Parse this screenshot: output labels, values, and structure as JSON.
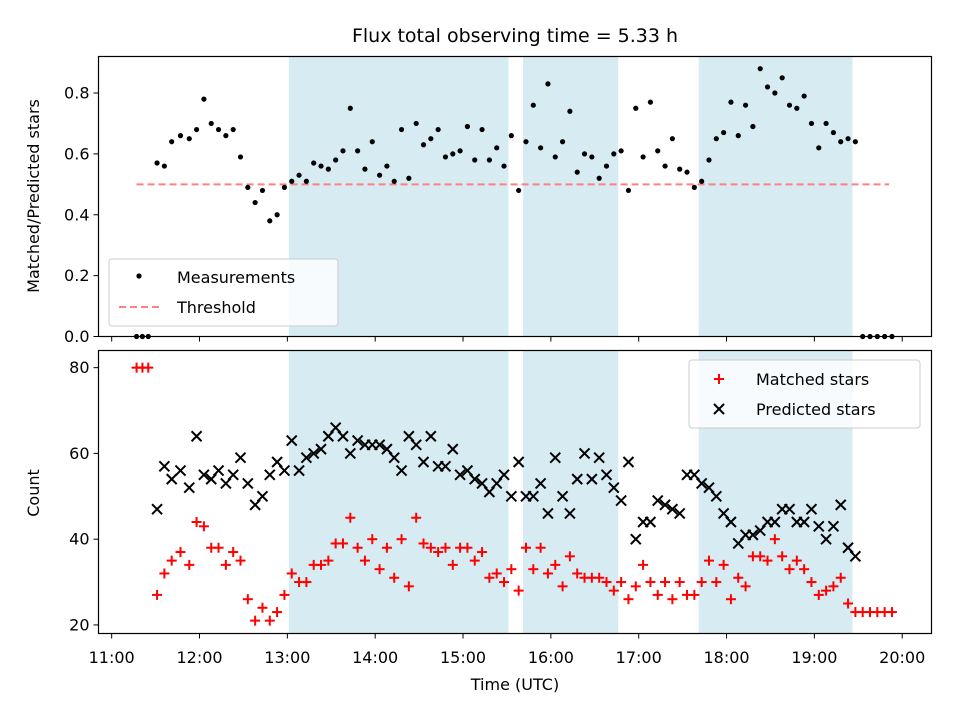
{
  "chart_data": [
    {
      "type": "scatter",
      "title": "Flux total observing time = 5.33 h",
      "xlabel": "Time (UTC)",
      "ylabel": "Matched/Predicted stars",
      "ylim": [
        0,
        0.92
      ],
      "yticks": [
        "0.0",
        "0.2",
        "0.4",
        "0.6",
        "0.8"
      ],
      "grid": false,
      "legend_position": "lower-left",
      "shaded_intervals": [
        [
          "13:01",
          "15:31"
        ],
        [
          "15:41",
          "16:46"
        ],
        [
          "17:41",
          "19:26"
        ]
      ],
      "threshold": 0.5,
      "threshold_range": [
        "11:17",
        "19:51"
      ],
      "series": [
        {
          "name": "Measurements",
          "marker": "dot",
          "color": "#000000",
          "x": [
            "11:17",
            "11:21",
            "11:25",
            "11:31",
            "11:36",
            "11:41",
            "11:47",
            "11:53",
            "11:58",
            "12:03",
            "12:08",
            "12:13",
            "12:18",
            "12:23",
            "12:28",
            "12:33",
            "12:38",
            "12:43",
            "12:48",
            "12:53",
            "12:58",
            "13:03",
            "13:08",
            "13:13",
            "13:18",
            "13:23",
            "13:28",
            "13:33",
            "13:38",
            "13:43",
            "13:48",
            "13:53",
            "13:58",
            "14:03",
            "14:08",
            "14:13",
            "14:18",
            "14:23",
            "14:28",
            "14:33",
            "14:38",
            "14:43",
            "14:48",
            "14:53",
            "14:58",
            "15:03",
            "15:08",
            "15:13",
            "15:18",
            "15:23",
            "15:28",
            "15:33",
            "15:38",
            "15:43",
            "15:48",
            "15:53",
            "15:58",
            "16:03",
            "16:08",
            "16:13",
            "16:18",
            "16:23",
            "16:28",
            "16:33",
            "16:38",
            "16:43",
            "16:48",
            "16:53",
            "16:58",
            "17:03",
            "17:08",
            "17:13",
            "17:18",
            "17:23",
            "17:28",
            "17:33",
            "17:38",
            "17:43",
            "17:48",
            "17:53",
            "17:58",
            "18:03",
            "18:08",
            "18:13",
            "18:18",
            "18:23",
            "18:28",
            "18:33",
            "18:38",
            "18:43",
            "18:48",
            "18:53",
            "18:58",
            "19:03",
            "19:08",
            "19:13",
            "19:18",
            "19:23",
            "19:28",
            "19:33",
            "19:38",
            "19:43",
            "19:48",
            "19:53"
          ],
          "y": [
            0,
            0,
            0,
            0.57,
            0.56,
            0.64,
            0.66,
            0.65,
            0.68,
            0.78,
            0.7,
            0.68,
            0.66,
            0.68,
            0.59,
            0.49,
            0.44,
            0.48,
            0.38,
            0.4,
            0.49,
            0.51,
            0.53,
            0.51,
            0.57,
            0.56,
            0.55,
            0.58,
            0.61,
            0.75,
            0.61,
            0.55,
            0.64,
            0.53,
            0.56,
            0.51,
            0.68,
            0.52,
            0.7,
            0.63,
            0.65,
            0.68,
            0.59,
            0.6,
            0.61,
            0.69,
            0.58,
            0.68,
            0.58,
            0.62,
            0.56,
            0.66,
            0.48,
            0.64,
            0.76,
            0.62,
            0.83,
            0.59,
            0.64,
            0.74,
            0.54,
            0.6,
            0.59,
            0.52,
            0.56,
            0.6,
            0.61,
            0.48,
            0.75,
            0.59,
            0.77,
            0.61,
            0.56,
            0.65,
            0.55,
            0.54,
            0.49,
            0.51,
            0.58,
            0.65,
            0.67,
            0.77,
            0.66,
            0.76,
            0.69,
            0.88,
            0.82,
            0.8,
            0.85,
            0.76,
            0.75,
            0.79,
            0.7,
            0.62,
            0.7,
            0.67,
            0.64,
            0.65,
            0.64,
            0,
            0,
            0,
            0,
            0
          ]
        },
        {
          "name": "Threshold",
          "marker": "dashed-line",
          "color": "#ff8080"
        }
      ]
    },
    {
      "type": "scatter",
      "title": "",
      "xlabel": "Time (UTC)",
      "ylabel": "Count",
      "ylim": [
        18,
        84
      ],
      "yticks": [
        "20",
        "40",
        "60",
        "80"
      ],
      "xticks": [
        "11:00",
        "12:00",
        "13:00",
        "14:00",
        "15:00",
        "16:00",
        "17:00",
        "18:00",
        "19:00",
        "20:00"
      ],
      "xlim": [
        "10:51",
        "20:20"
      ],
      "grid": false,
      "legend_position": "top-right",
      "shaded_intervals": [
        [
          "13:01",
          "15:31"
        ],
        [
          "15:41",
          "16:46"
        ],
        [
          "17:41",
          "19:26"
        ]
      ],
      "series": [
        {
          "name": "Matched stars",
          "marker": "plus",
          "color": "#ff0000",
          "x": [
            "11:17",
            "11:21",
            "11:25",
            "11:31",
            "11:36",
            "11:41",
            "11:47",
            "11:53",
            "11:58",
            "12:03",
            "12:08",
            "12:13",
            "12:18",
            "12:23",
            "12:28",
            "12:33",
            "12:38",
            "12:43",
            "12:48",
            "12:53",
            "12:58",
            "13:03",
            "13:08",
            "13:13",
            "13:18",
            "13:23",
            "13:28",
            "13:33",
            "13:38",
            "13:43",
            "13:48",
            "13:53",
            "13:58",
            "14:03",
            "14:08",
            "14:13",
            "14:18",
            "14:23",
            "14:28",
            "14:33",
            "14:38",
            "14:43",
            "14:48",
            "14:53",
            "14:58",
            "15:03",
            "15:08",
            "15:13",
            "15:18",
            "15:23",
            "15:28",
            "15:33",
            "15:38",
            "15:43",
            "15:48",
            "15:53",
            "15:58",
            "16:03",
            "16:08",
            "16:13",
            "16:18",
            "16:23",
            "16:28",
            "16:33",
            "16:38",
            "16:43",
            "16:48",
            "16:53",
            "16:58",
            "17:03",
            "17:08",
            "17:13",
            "17:18",
            "17:23",
            "17:28",
            "17:33",
            "17:38",
            "17:43",
            "17:48",
            "17:53",
            "17:58",
            "18:03",
            "18:08",
            "18:13",
            "18:18",
            "18:23",
            "18:28",
            "18:33",
            "18:38",
            "18:43",
            "18:48",
            "18:53",
            "18:58",
            "19:03",
            "19:08",
            "19:13",
            "19:18",
            "19:23",
            "19:28",
            "19:33",
            "19:38",
            "19:43",
            "19:48",
            "19:53"
          ],
          "y": [
            80,
            80,
            80,
            27,
            32,
            35,
            37,
            34,
            44,
            43,
            38,
            38,
            34,
            37,
            35,
            26,
            21,
            24,
            21,
            23,
            27,
            32,
            30,
            30,
            34,
            34,
            35,
            39,
            39,
            45,
            38,
            35,
            40,
            33,
            38,
            31,
            40,
            29,
            45,
            39,
            38,
            37,
            38,
            34,
            38,
            38,
            35,
            37,
            31,
            32,
            30,
            33,
            28,
            38,
            33,
            38,
            32,
            34,
            29,
            36,
            32,
            31,
            31,
            31,
            30,
            28,
            30,
            26,
            29,
            34,
            30,
            27,
            30,
            26,
            30,
            27,
            27,
            30,
            35,
            30,
            34,
            26,
            31,
            29,
            36,
            36,
            35,
            40,
            36,
            33,
            35,
            33,
            30,
            27,
            28,
            29,
            31,
            25,
            23,
            23,
            23,
            23,
            23,
            23
          ]
        },
        {
          "name": "Predicted stars",
          "marker": "x",
          "color": "#000000",
          "x": [
            "11:31",
            "11:36",
            "11:41",
            "11:47",
            "11:53",
            "11:58",
            "12:03",
            "12:08",
            "12:13",
            "12:18",
            "12:23",
            "12:28",
            "12:33",
            "12:38",
            "12:43",
            "12:48",
            "12:53",
            "12:58",
            "13:03",
            "13:08",
            "13:13",
            "13:18",
            "13:23",
            "13:28",
            "13:33",
            "13:38",
            "13:43",
            "13:48",
            "13:53",
            "13:58",
            "14:03",
            "14:08",
            "14:13",
            "14:18",
            "14:23",
            "14:28",
            "14:33",
            "14:38",
            "14:43",
            "14:48",
            "14:53",
            "14:58",
            "15:03",
            "15:08",
            "15:13",
            "15:18",
            "15:23",
            "15:28",
            "15:33",
            "15:38",
            "15:43",
            "15:48",
            "15:53",
            "15:58",
            "16:03",
            "16:08",
            "16:13",
            "16:18",
            "16:23",
            "16:28",
            "16:33",
            "16:38",
            "16:43",
            "16:48",
            "16:53",
            "16:58",
            "17:03",
            "17:08",
            "17:13",
            "17:18",
            "17:23",
            "17:28",
            "17:33",
            "17:38",
            "17:43",
            "17:48",
            "17:53",
            "17:58",
            "18:03",
            "18:08",
            "18:13",
            "18:18",
            "18:23",
            "18:28",
            "18:33",
            "18:38",
            "18:43",
            "18:48",
            "18:53",
            "18:58",
            "19:03",
            "19:08",
            "19:13",
            "19:18",
            "19:23",
            "19:28"
          ],
          "y": [
            47,
            57,
            54,
            56,
            52,
            64,
            55,
            54,
            56,
            53,
            55,
            59,
            53,
            48,
            50,
            55,
            58,
            56,
            63,
            56,
            59,
            60,
            61,
            64,
            66,
            64,
            60,
            63,
            62,
            62,
            62,
            61,
            59,
            56,
            64,
            62,
            58,
            64,
            57,
            57,
            61,
            55,
            56,
            54,
            53,
            51,
            53,
            55,
            50,
            58,
            50,
            50,
            53,
            46,
            59,
            50,
            46,
            54,
            60,
            54,
            59,
            55,
            52,
            49,
            58,
            40,
            44,
            44,
            49,
            48,
            47,
            46,
            55,
            55,
            53,
            52,
            50,
            46,
            44,
            39,
            41,
            41,
            42,
            44,
            44,
            47,
            47,
            44,
            44,
            47,
            43,
            40,
            43,
            48,
            38,
            36
          ]
        }
      ]
    }
  ]
}
